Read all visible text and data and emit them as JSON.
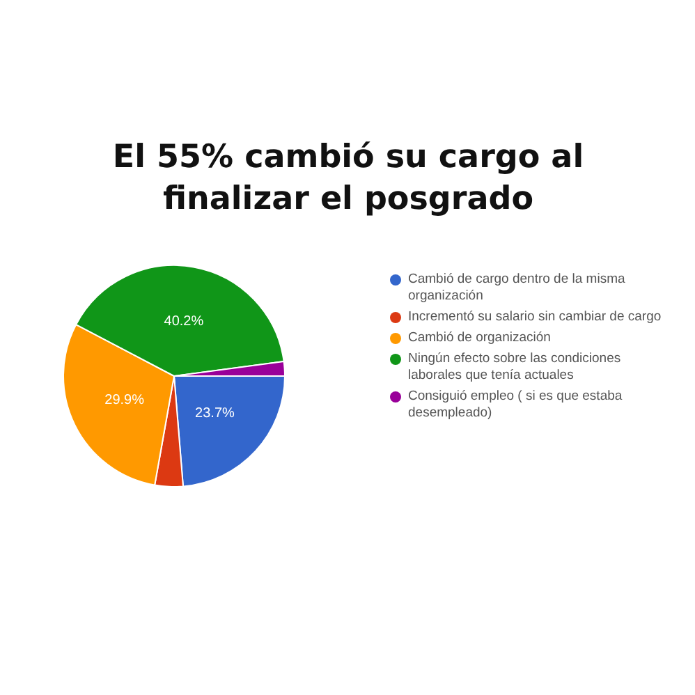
{
  "chart_data": {
    "type": "pie",
    "title": "El 55% cambió su cargo al finalizar el posgrado",
    "categories": [
      "Cambió de cargo dentro de la misma organización",
      "Incrementó su salario sin cambiar de cargo",
      "Cambió de organización",
      "Ningún efecto sobre las condiciones laborales que tenía actuales",
      "Consiguió empleo ( si es que estaba desempleado)"
    ],
    "values": [
      23.7,
      4.1,
      29.9,
      40.2,
      2.1
    ],
    "value_labels": [
      "23.7%",
      null,
      "29.9%",
      "40.2%",
      null
    ],
    "colors": [
      "#3366cc",
      "#dc3912",
      "#ff9900",
      "#109618",
      "#990099"
    ],
    "legend": "right"
  }
}
